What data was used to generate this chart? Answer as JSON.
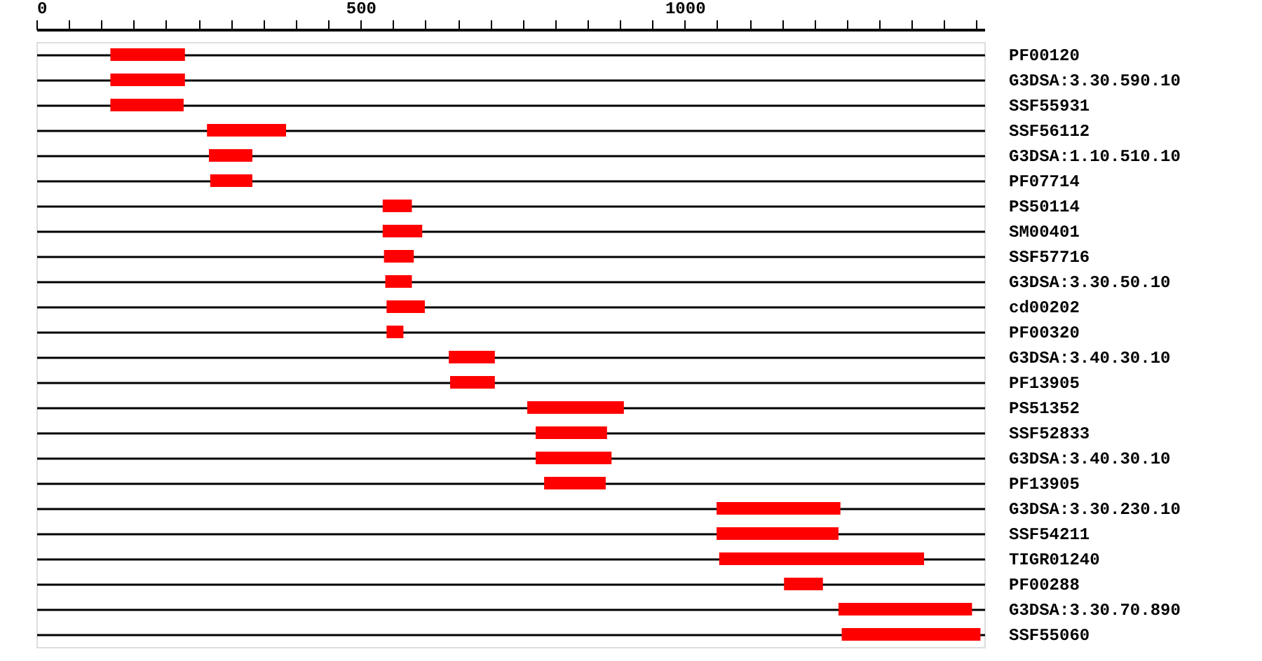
{
  "chart_data": {
    "type": "bar",
    "orientation": "horizontal",
    "categories": [
      "PF00120",
      "G3DSA:3.30.590.10",
      "SSF55931",
      "SSF56112",
      "G3DSA:1.10.510.10",
      "PF07714",
      "PS50114",
      "SM00401",
      "SSF57716",
      "G3DSA:3.30.50.10",
      "cd00202",
      "PF00320",
      "G3DSA:3.40.30.10",
      "PF13905",
      "PS51352",
      "SSF52833",
      "G3DSA:3.40.30.10",
      "PF13905",
      "G3DSA:3.30.230.10",
      "SSF54211",
      "TIGR01240",
      "PF00288",
      "G3DSA:3.30.70.890",
      "SSF55060"
    ],
    "base": [
      114,
      114,
      114,
      263,
      266,
      268,
      534,
      534,
      536,
      538,
      540,
      540,
      636,
      638,
      757,
      770,
      770,
      783,
      1049,
      1049,
      1053,
      1153,
      1237,
      1242
    ],
    "values": [
      115,
      115,
      113,
      122,
      67,
      65,
      45,
      61,
      46,
      41,
      59,
      26,
      71,
      69,
      149,
      110,
      117,
      95,
      191,
      188,
      316,
      60,
      206,
      214
    ],
    "color": "#ff0000",
    "xlim": [
      0,
      1462
    ],
    "xticks": [
      0,
      {
        "value": 50,
        "label": null
      },
      {
        "value": 100,
        "label": null
      },
      {
        "value": 150,
        "label": null
      },
      {
        "value": 200,
        "label": null
      },
      {
        "value": 250,
        "label": null
      },
      {
        "value": 300,
        "label": null
      },
      {
        "value": 350,
        "label": null
      },
      {
        "value": 400,
        "label": null
      },
      {
        "value": 450,
        "label": null
      },
      500,
      {
        "value": 550,
        "label": null
      },
      {
        "value": 600,
        "label": null
      },
      {
        "value": 650,
        "label": null
      },
      {
        "value": 700,
        "label": null
      },
      {
        "value": 750,
        "label": null
      },
      {
        "value": 800,
        "label": null
      },
      {
        "value": 850,
        "label": null
      },
      {
        "value": 900,
        "label": null
      },
      {
        "value": 950,
        "label": null
      },
      1000,
      {
        "value": 1050,
        "label": null
      },
      {
        "value": 1100,
        "label": null
      },
      {
        "value": 1150,
        "label": null
      },
      {
        "value": 1200,
        "label": null
      },
      {
        "value": 1250,
        "label": null
      },
      {
        "value": 1300,
        "label": null
      },
      {
        "value": 1350,
        "label": null
      },
      {
        "value": 1400,
        "label": null
      },
      {
        "value": 1450,
        "label": null
      }
    ],
    "grid": "y"
  }
}
